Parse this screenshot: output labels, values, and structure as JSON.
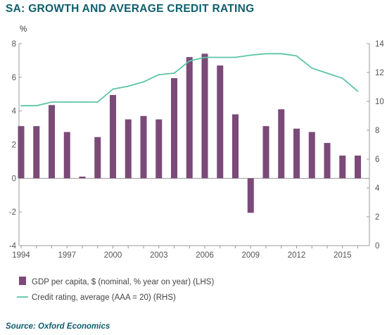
{
  "title": "SA: GROWTH AND AVERAGE CREDIT RATING",
  "source": "Source: Oxford Economics",
  "colors": {
    "bar": "#7b4a78",
    "line": "#5cc5a6",
    "axis": "#9a9a9a",
    "title": "#0f5d6d"
  },
  "chart_data": {
    "type": "bar",
    "title": "SA: GROWTH AND AVERAGE CREDIT RATING",
    "unit_label": "%",
    "x": [
      1994,
      1995,
      1996,
      1997,
      1998,
      1999,
      2000,
      2001,
      2002,
      2003,
      2004,
      2005,
      2006,
      2007,
      2008,
      2009,
      2010,
      2011,
      2012,
      2013,
      2014,
      2015,
      2016
    ],
    "x_tick_labels": [
      "1994",
      "1997",
      "2000",
      "2003",
      "2006",
      "2009",
      "2012",
      "2015"
    ],
    "y_left": {
      "range": [
        -4,
        8
      ],
      "ticks": [
        "-4",
        "-2",
        "0",
        "2",
        "4",
        "6",
        "8"
      ]
    },
    "y_right": {
      "range": [
        0,
        14
      ],
      "ticks": [
        "0",
        "2",
        "4",
        "6",
        "8",
        "10",
        "12",
        "14"
      ]
    },
    "grid": false,
    "legend_position": "bottom",
    "series": [
      {
        "name": "GDP per capita, $ (nominal, % year on year) (LHS)",
        "type": "bar",
        "axis": "left",
        "values": [
          3.1,
          3.1,
          4.35,
          2.75,
          0.1,
          2.45,
          4.95,
          3.5,
          3.7,
          3.5,
          5.95,
          7.2,
          7.4,
          6.7,
          3.8,
          -2.05,
          3.1,
          4.1,
          2.95,
          2.75,
          2.1,
          1.35,
          1.35
        ]
      },
      {
        "name": "Credit rating, average (AAA = 20) (RHS)",
        "type": "line",
        "axis": "right",
        "values": [
          9.7,
          9.7,
          9.95,
          9.95,
          9.95,
          9.95,
          10.85,
          11.05,
          11.35,
          11.85,
          11.95,
          12.8,
          13.05,
          13.05,
          13.05,
          13.2,
          13.3,
          13.3,
          13.15,
          12.3,
          11.95,
          11.6,
          10.7
        ]
      }
    ]
  }
}
